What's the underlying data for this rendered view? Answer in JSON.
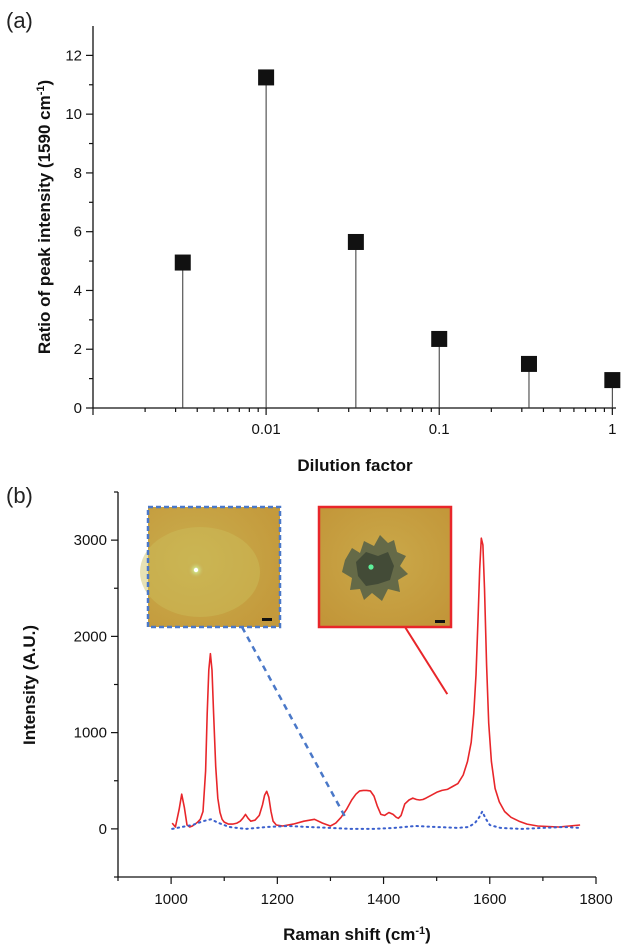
{
  "chart_data": [
    {
      "panel": "(a)",
      "type": "scatter",
      "style": "stem",
      "x_scale": "log",
      "xlabel": "Dilution factor",
      "ylabel": "Ratio of peak intensity (1590 cm",
      "ylabel_sup": "-1",
      "ylabel_end": ")",
      "xlim": [
        0.001,
        1.05
      ],
      "ylim": [
        0,
        13
      ],
      "x_ticks": [
        0.01,
        0.1,
        1
      ],
      "x_tick_labels": [
        "0.01",
        "0.1",
        "1"
      ],
      "y_ticks": [
        0,
        2,
        4,
        6,
        8,
        10,
        12
      ],
      "y_tick_labels": [
        "0",
        "2",
        "4",
        "6",
        "8",
        "10",
        "12"
      ],
      "points": [
        {
          "x": 0.0033,
          "y": 4.95
        },
        {
          "x": 0.01,
          "y": 11.25
        },
        {
          "x": 0.033,
          "y": 5.65
        },
        {
          "x": 0.1,
          "y": 2.35
        },
        {
          "x": 0.33,
          "y": 1.5
        },
        {
          "x": 1.0,
          "y": 0.95
        }
      ],
      "marker_color": "#111111"
    },
    {
      "panel": "(b)",
      "type": "line",
      "xlabel": "Raman shift (cm",
      "xlabel_sup": "-1",
      "xlabel_end": ")",
      "ylabel": "Intensity (A.U.)",
      "xlim": [
        900,
        1800
      ],
      "ylim": [
        -500,
        3500
      ],
      "x_ticks": [
        1000,
        1200,
        1400,
        1600,
        1800
      ],
      "x_tick_labels": [
        "1000",
        "1200",
        "1400",
        "1600",
        "1800"
      ],
      "y_ticks": [
        0,
        1000,
        2000,
        3000
      ],
      "y_tick_labels": [
        "0",
        "1000",
        "2000",
        "3000"
      ],
      "series": [
        {
          "color": "#e8262a",
          "dash": "solid",
          "x": [
            1002,
            1008,
            1015,
            1020,
            1025,
            1030,
            1035,
            1040,
            1045,
            1050,
            1055,
            1060,
            1065,
            1068,
            1071,
            1074,
            1077,
            1080,
            1084,
            1088,
            1092,
            1096,
            1100,
            1108,
            1116,
            1124,
            1130,
            1135,
            1140,
            1145,
            1150,
            1158,
            1166,
            1172,
            1176,
            1180,
            1184,
            1188,
            1192,
            1198,
            1210,
            1230,
            1250,
            1270,
            1285,
            1300,
            1310,
            1320,
            1330,
            1340,
            1348,
            1355,
            1362,
            1368,
            1375,
            1382,
            1388,
            1395,
            1402,
            1410,
            1418,
            1424,
            1428,
            1433,
            1440,
            1448,
            1455,
            1462,
            1468,
            1474,
            1480,
            1490,
            1500,
            1510,
            1520,
            1530,
            1540,
            1550,
            1558,
            1565,
            1570,
            1574,
            1578,
            1581,
            1584,
            1587,
            1590,
            1594,
            1598,
            1603,
            1610,
            1618,
            1628,
            1640,
            1655,
            1670,
            1690,
            1710,
            1730,
            1750,
            1770
          ],
          "y": [
            60,
            20,
            200,
            360,
            220,
            40,
            20,
            30,
            50,
            70,
            100,
            180,
            600,
            1200,
            1650,
            1820,
            1650,
            1200,
            650,
            320,
            170,
            100,
            70,
            50,
            50,
            60,
            80,
            110,
            150,
            110,
            80,
            90,
            140,
            250,
            350,
            390,
            330,
            180,
            80,
            40,
            30,
            50,
            80,
            100,
            60,
            30,
            60,
            120,
            200,
            300,
            360,
            395,
            400,
            400,
            395,
            340,
            240,
            150,
            140,
            170,
            150,
            120,
            110,
            140,
            260,
            300,
            320,
            305,
            300,
            305,
            320,
            350,
            380,
            400,
            410,
            440,
            470,
            560,
            700,
            900,
            1200,
            1600,
            2200,
            2700,
            3020,
            2950,
            2500,
            1700,
            1100,
            700,
            420,
            280,
            180,
            120,
            80,
            50,
            30,
            25,
            20,
            30,
            40
          ]
        },
        {
          "color": "#3a5fcd",
          "dash": "dotted",
          "x": [
            1002,
            1020,
            1040,
            1060,
            1075,
            1090,
            1110,
            1140,
            1180,
            1220,
            1260,
            1300,
            1340,
            1380,
            1420,
            1460,
            1500,
            1540,
            1560,
            1572,
            1580,
            1586,
            1592,
            1600,
            1620,
            1660,
            1700,
            1740,
            1770
          ],
          "y": [
            0,
            20,
            40,
            80,
            100,
            60,
            20,
            0,
            20,
            30,
            20,
            10,
            0,
            0,
            10,
            30,
            20,
            10,
            20,
            60,
            120,
            180,
            110,
            40,
            10,
            0,
            10,
            20,
            10
          ]
        }
      ],
      "insets": [
        {
          "border_color": "#4a78c8",
          "border_style": "dashed",
          "points_to_x": 1330,
          "points_to_y": 100
        },
        {
          "border_color": "#e8262a",
          "border_style": "solid",
          "points_to_x": 1520,
          "points_to_y": 1400
        }
      ]
    }
  ]
}
